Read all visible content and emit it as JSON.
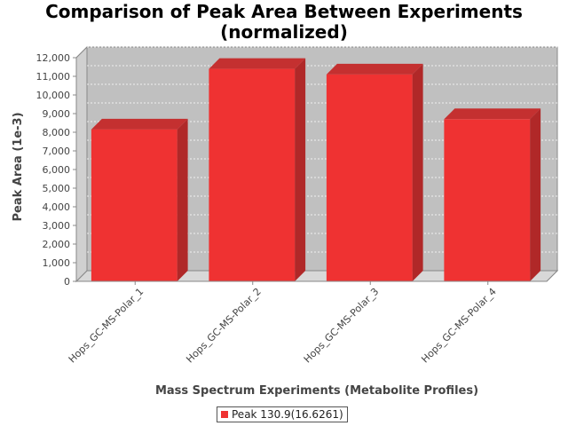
{
  "chart_data": {
    "type": "bar",
    "title_lines": [
      "Comparison of Peak Area Between Experiments",
      "(normalized)"
    ],
    "xlabel": "Mass Spectrum Experiments (Metabolite Profiles)",
    "ylabel": "Peak Area (1e-3)",
    "categories": [
      "Hops_GC-MS-Polar_1",
      "Hops_GC-MS-Polar_2",
      "Hops_GC-MS-Polar_3",
      "Hops_GC-MS-Polar_4"
    ],
    "series": [
      {
        "name": "Peak 130.9(16.6261)",
        "values": [
          8150,
          11400,
          11100,
          8700
        ],
        "color": "#ef3232"
      }
    ],
    "ylim": [
      0,
      12000
    ],
    "yticks": [
      0,
      1000,
      2000,
      3000,
      4000,
      5000,
      6000,
      7000,
      8000,
      9000,
      10000,
      11000,
      12000
    ],
    "ytick_labels": [
      "0",
      "1,000",
      "2,000",
      "3,000",
      "4,000",
      "5,000",
      "6,000",
      "7,000",
      "8,000",
      "9,000",
      "10,000",
      "11,000",
      "12,000"
    ],
    "grid": true,
    "style": "3d",
    "legend_position": "bottom-center",
    "colors": {
      "plot_background": "#c0c0c0",
      "bar": "#ef3232",
      "bar_top": "#c43030",
      "bar_side": "#b02828"
    }
  }
}
